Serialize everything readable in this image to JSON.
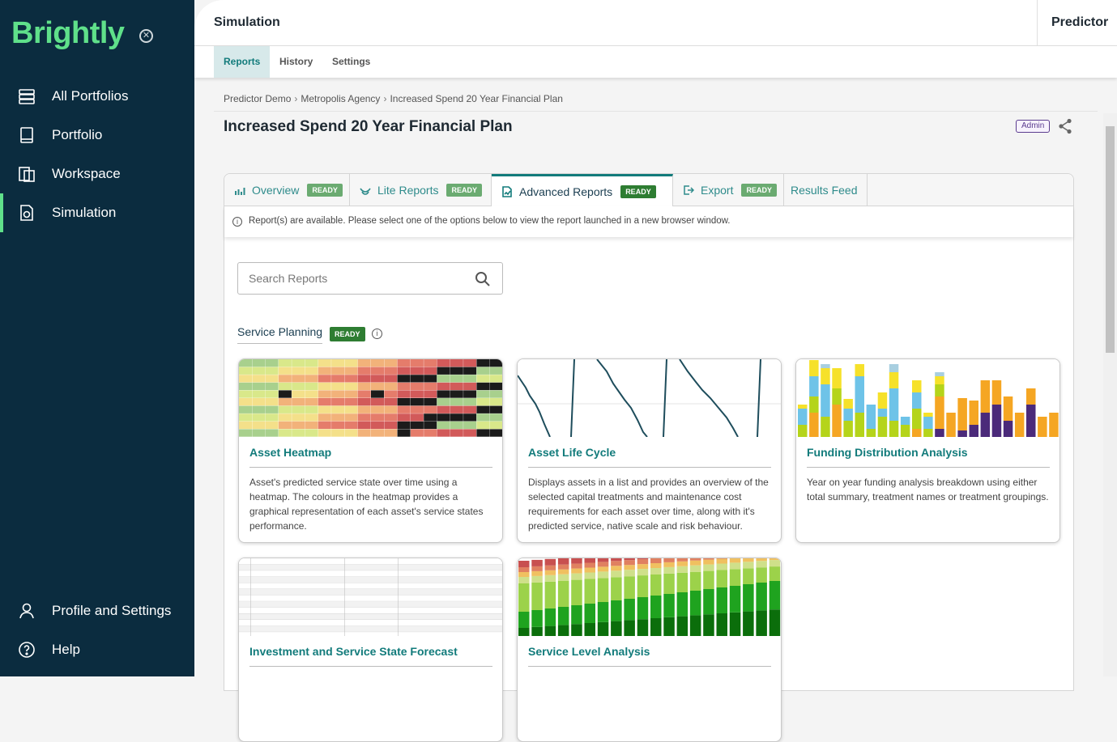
{
  "sidebar": {
    "logo": "Brightly",
    "items": [
      {
        "label": "All Portfolios",
        "icon": "portfolios-icon"
      },
      {
        "label": "Portfolio",
        "icon": "book-icon"
      },
      {
        "label": "Workspace",
        "icon": "workspace-icon"
      },
      {
        "label": "Simulation",
        "icon": "simulation-icon",
        "active": true
      }
    ],
    "bottom_items": [
      {
        "label": "Profile and Settings",
        "icon": "user-icon"
      },
      {
        "label": "Help",
        "icon": "help-icon"
      }
    ]
  },
  "header": {
    "title": "Simulation",
    "app": "Predictor"
  },
  "subnav": {
    "tabs": [
      "Reports",
      "History",
      "Settings"
    ],
    "active": "Reports"
  },
  "breadcrumb": [
    "Predictor Demo",
    "Metropolis Agency",
    "Increased Spend 20 Year Financial Plan"
  ],
  "page": {
    "title": "Increased Spend 20 Year Financial Plan",
    "role_badge": "Admin"
  },
  "report_tabs": [
    {
      "label": "Overview",
      "status": "READY"
    },
    {
      "label": "Lite Reports",
      "status": "READY"
    },
    {
      "label": "Advanced Reports",
      "status": "READY",
      "active": true
    },
    {
      "label": "Export",
      "status": "READY"
    },
    {
      "label": "Results Feed"
    }
  ],
  "info": "Report(s) are available. Please select one of the options below to view the report launched in a new browser window.",
  "search": {
    "placeholder": "Search Reports",
    "value": ""
  },
  "section": {
    "title": "Service Planning",
    "status": "READY"
  },
  "cards": [
    {
      "title": "Asset Heatmap",
      "desc": "Asset's predicted service state over time using a heatmap. The colours in the heatmap provides a graphical representation of each asset's service states performance."
    },
    {
      "title": "Asset Life Cycle",
      "desc": "Displays assets in a list and provides an overview of the selected capital treatments and maintenance cost requirements for each asset over time, along with it's predicted service, native scale and risk behaviour."
    },
    {
      "title": "Funding Distribution Analysis",
      "desc": "Year on year funding analysis breakdown using either total summary, treatment names or treatment groupings."
    },
    {
      "title": "Investment and Service State Forecast",
      "desc": ""
    },
    {
      "title": "Service Level Analysis",
      "desc": ""
    }
  ],
  "colors": {
    "sidebar_bg": "#0b2c3f",
    "brand_green": "#5fe08a",
    "teal": "#127b7b",
    "ready_green": "#2e7d32"
  }
}
